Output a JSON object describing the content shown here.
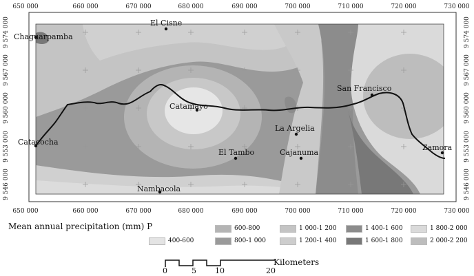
{
  "axes": {
    "x_ticks_top": [
      "650 000",
      "660 000",
      "670 000",
      "680 000",
      "690 000",
      "700 000",
      "710 000",
      "720 000",
      "730 000"
    ],
    "x_ticks_bottom": [
      "650 000",
      "660 000",
      "670 000",
      "680 000",
      "690 000",
      "700 000",
      "710 000",
      "720 000",
      "730 000"
    ],
    "y_ticks": [
      "9 574 000",
      "9 567 000",
      "9 560 000",
      "9 553 000",
      "9 546 000"
    ]
  },
  "places": [
    {
      "name": "El Cisne"
    },
    {
      "name": "Chaguarpamba"
    },
    {
      "name": "San Francisco"
    },
    {
      "name": "Catamayo"
    },
    {
      "name": "La Argelia"
    },
    {
      "name": "Catacocha"
    },
    {
      "name": "El Tambo"
    },
    {
      "name": "Cajanuma"
    },
    {
      "name": "Zamora"
    },
    {
      "name": "Nambacola"
    }
  ],
  "legend": {
    "title": "Mean annual precipitation (mm) P",
    "classes": [
      {
        "label": "400-600",
        "color": "#e4e4e4"
      },
      {
        "label": "600-800",
        "color": "#b4b4b4"
      },
      {
        "label": "800-1 000",
        "color": "#9a9a9a"
      },
      {
        "label": "1 000-1 200",
        "color": "#c4c4c4"
      },
      {
        "label": "1 200-1 400",
        "color": "#cdcdcd"
      },
      {
        "label": "1 400-1 600",
        "color": "#8c8c8c"
      },
      {
        "label": "1 600-1 800",
        "color": "#787878"
      },
      {
        "label": "1 800-2 000",
        "color": "#dadada"
      },
      {
        "label": "2 000-2 200",
        "color": "#bdbdbd"
      }
    ]
  },
  "scale_bar": {
    "unit": "Kilometers",
    "labels": [
      "0",
      "5",
      "10",
      "20"
    ]
  }
}
